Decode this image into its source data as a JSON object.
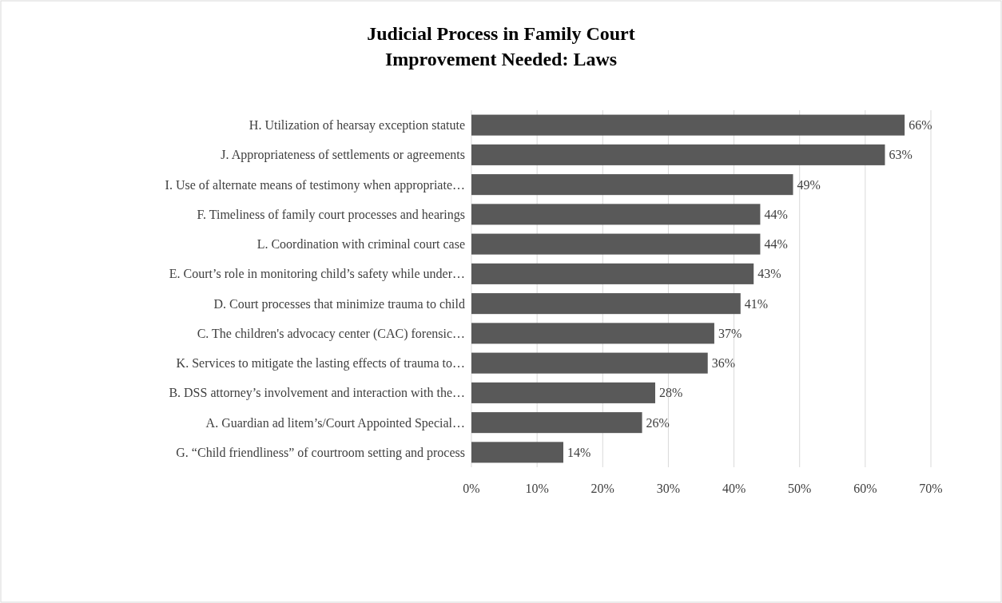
{
  "chart_data": {
    "type": "bar",
    "orientation": "horizontal",
    "title": "Judicial Process in Family Court",
    "subtitle": "Improvement Needed: Laws",
    "categories": [
      "H. Utilization of hearsay exception statute",
      "J. Appropriateness of settlements or agreements",
      "I. Use of alternate means of testimony when appropriate…",
      "F. Timeliness of family court processes and hearings",
      "L. Coordination with criminal court case",
      "E. Court’s role in monitoring child’s safety while under…",
      "D. Court processes that minimize trauma to child",
      "C. The children's advocacy center (CAC) forensic…",
      "K. Services to mitigate the lasting effects of trauma to…",
      "B. DSS attorney’s involvement and interaction with the…",
      "A. Guardian ad litem’s/Court Appointed Special…",
      "G. “Child friendliness” of courtroom setting and process"
    ],
    "values": [
      66,
      63,
      49,
      44,
      44,
      43,
      41,
      37,
      36,
      28,
      26,
      14
    ],
    "value_labels": [
      "66%",
      "63%",
      "49%",
      "44%",
      "44%",
      "43%",
      "41%",
      "37%",
      "36%",
      "28%",
      "26%",
      "14%"
    ],
    "color": "#595959",
    "xlim": [
      0,
      70
    ],
    "xticks": [
      {
        "value": 0,
        "label": "0%"
      },
      {
        "value": 10,
        "label": "10%"
      },
      {
        "value": 20,
        "label": "20%"
      },
      {
        "value": 30,
        "label": "30%"
      },
      {
        "value": 40,
        "label": "40%"
      },
      {
        "value": 50,
        "label": "50%"
      },
      {
        "value": 60,
        "label": "60%"
      },
      {
        "value": 70,
        "label": "70%"
      }
    ],
    "grid": "x"
  }
}
